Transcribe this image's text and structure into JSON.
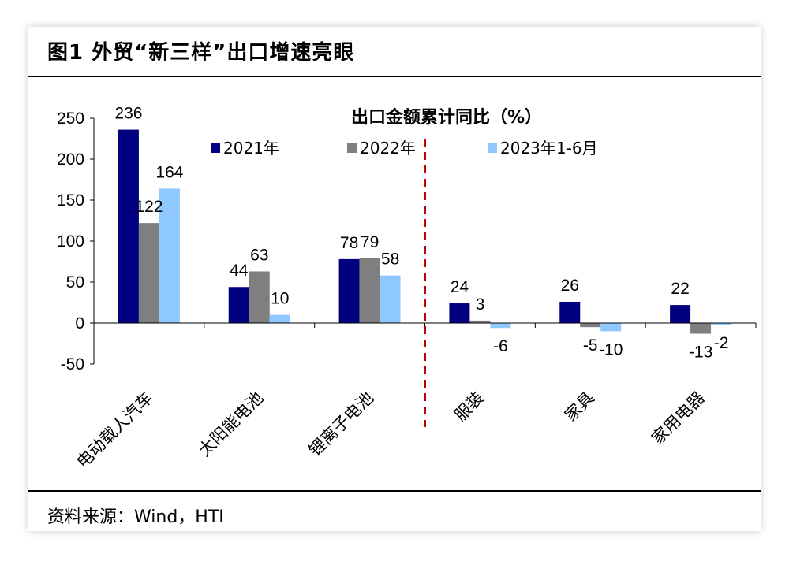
{
  "figure": {
    "title": "图1  外贸“新三样”出口增速亮眼",
    "source": "资料来源：Wind，HTI"
  },
  "chart_data": {
    "type": "bar",
    "title": "出口金额累计同比（%）",
    "categories": [
      "电动载人汽车",
      "太阳能电池",
      "锂离子电池",
      "服装",
      "家具",
      "家用电器"
    ],
    "series": [
      {
        "name": "2021年",
        "values": [
          236,
          44,
          78,
          24,
          26,
          22
        ],
        "color": "#000080"
      },
      {
        "name": "2022年",
        "values": [
          122,
          63,
          79,
          3,
          -5,
          -13
        ],
        "color": "#7f7f7f"
      },
      {
        "name": "2023年1-6月",
        "values": [
          164,
          10,
          58,
          -6,
          -10,
          -2
        ],
        "color": "#8ec8ff"
      }
    ],
    "ylim": [
      -50,
      250
    ],
    "yticks": [
      -50,
      0,
      50,
      100,
      150,
      200,
      250
    ],
    "xlabel": "",
    "ylabel": "",
    "divider_after_category": 3,
    "divider_color": "#c00000",
    "legend_position": "top"
  }
}
